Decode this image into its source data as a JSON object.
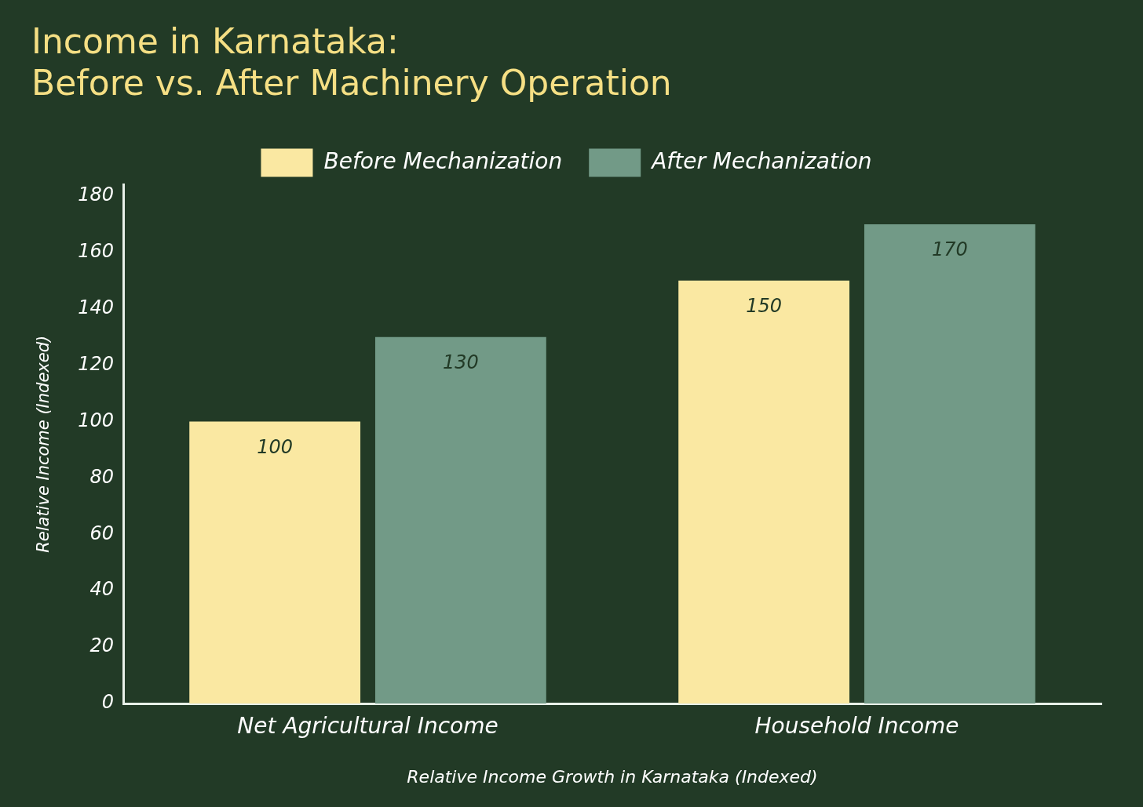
{
  "chart_data": {
    "type": "bar",
    "title": "Income in Karnataka:\nBefore vs. After Machinery Operation",
    "xlabel": "Relative Income Growth in Karnataka (Indexed)",
    "ylabel": "Relative Income (Indexed)",
    "categories": [
      "Net Agricultural Income",
      "Household Income"
    ],
    "series": [
      {
        "name": "Before Mechanization",
        "color": "#fae8a2",
        "values": [
          100,
          150
        ]
      },
      {
        "name": "After Mechanization",
        "color": "#729a87",
        "values": [
          130,
          170
        ]
      }
    ],
    "ylim": [
      0,
      184
    ],
    "yticks": [
      0,
      20,
      40,
      60,
      80,
      100,
      120,
      140,
      160,
      180
    ],
    "grid": false,
    "legend": "top",
    "data_labels": true
  }
}
